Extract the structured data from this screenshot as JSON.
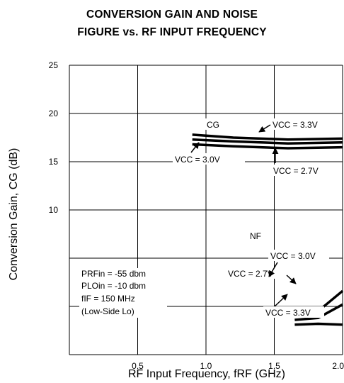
{
  "chart_data": {
    "type": "line",
    "title_line1": "CONVERSION GAIN AND NOISE",
    "title_line2": "FIGURE vs. RF INPUT FREQUENCY",
    "xlabel": "RF Input Frequency, fRF (GHz)",
    "ylabel": "Conversion Gain, CG (dB)",
    "xlim": [
      0.0,
      2.0
    ],
    "ylim": [
      -5,
      25
    ],
    "x_ticks": [
      {
        "value": 0.5,
        "label": "0.5"
      },
      {
        "value": 1.0,
        "label": "1.0"
      },
      {
        "value": 1.5,
        "label": "1.5"
      },
      {
        "value": 2.0,
        "label": "2.0"
      }
    ],
    "y_ticks": [
      {
        "value": 25,
        "label": "25"
      },
      {
        "value": 20,
        "label": "20"
      },
      {
        "value": 15,
        "label": "15"
      },
      {
        "value": 10,
        "label": "10"
      }
    ],
    "grid": true,
    "series": [
      {
        "group": "CG",
        "name": "VCC = 3.3V",
        "x": [
          0.9,
          1.2,
          1.6,
          2.0
        ],
        "y": [
          17.8,
          17.5,
          17.3,
          17.4
        ]
      },
      {
        "group": "CG",
        "name": "VCC = 3.0V",
        "x": [
          0.9,
          1.2,
          1.6,
          2.0
        ],
        "y": [
          17.3,
          17.1,
          16.9,
          17.0
        ]
      },
      {
        "group": "CG",
        "name": "VCC = 2.7V",
        "x": [
          0.9,
          1.2,
          1.6,
          2.0
        ],
        "y": [
          16.8,
          16.6,
          16.4,
          16.5
        ]
      },
      {
        "group": "NF",
        "name": "VCC = 3.0V",
        "x": [
          1.65,
          1.82,
          2.0
        ],
        "y": [
          -0.8,
          -0.5,
          1.6
        ]
      },
      {
        "group": "NF",
        "name": "VCC = 2.7V",
        "x": [
          1.65,
          1.82,
          2.0
        ],
        "y": [
          -1.4,
          -1.2,
          0.2
        ]
      },
      {
        "group": "NF",
        "name": "VCC = 3.3V",
        "x": [
          1.65,
          1.82,
          2.0
        ],
        "y": [
          -1.9,
          -1.8,
          -1.9
        ]
      }
    ],
    "annotations": {
      "cg": "CG",
      "nf": "NF",
      "cg_vcc_33": "VCC = 3.3V",
      "cg_vcc_30": "VCC = 3.0V",
      "cg_vcc_27": "VCC = 2.7V",
      "nf_vcc_30": "VCC = 3.0V",
      "nf_vcc_27": "VCC = 2.7V",
      "nf_vcc_33": "VCC = 3.3V",
      "cond_prf": "PRFin = -55 dbm",
      "cond_plo": "PLOin = -10 dbm",
      "cond_fif": "fIF = 150 MHz",
      "cond_lo": "(Low-Side Lo)"
    }
  }
}
